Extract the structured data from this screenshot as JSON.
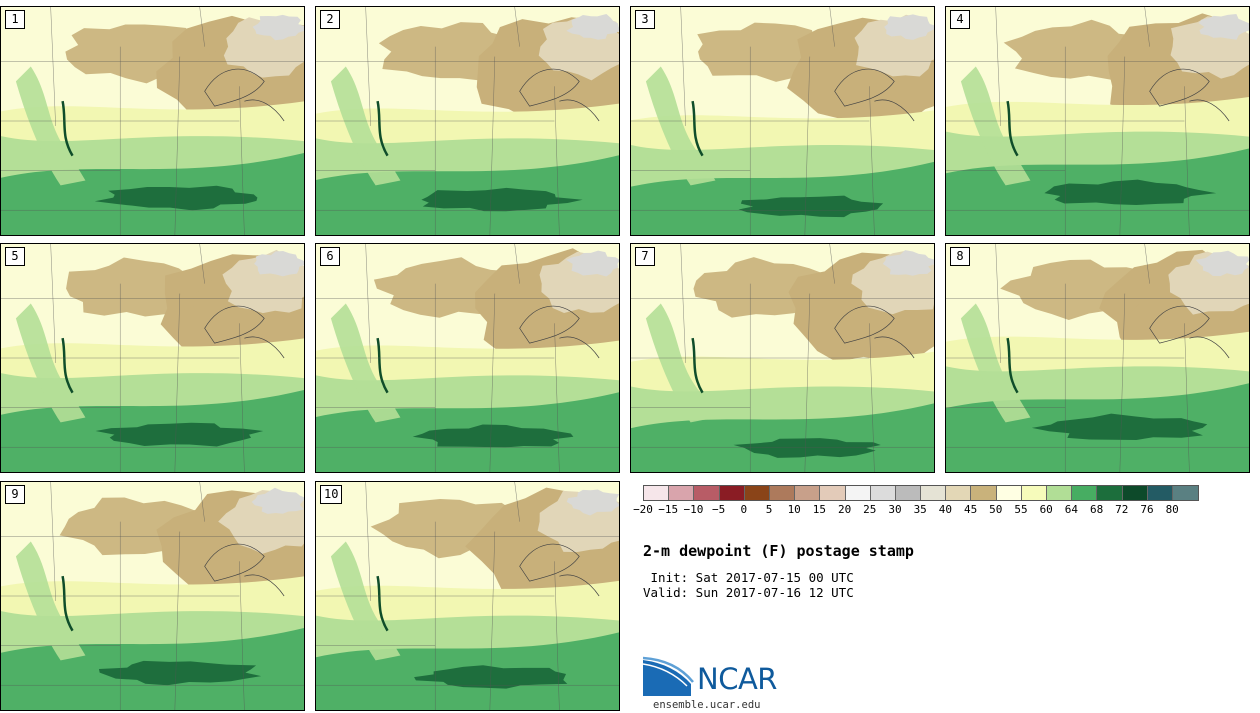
{
  "title": "2-m dewpoint (F) postage stamp",
  "init": " Init: Sat 2017-07-15 00 UTC",
  "valid": "Valid: Sun 2017-07-16 12 UTC",
  "site": "ensemble.ucar.edu",
  "logo_text": "NCAR",
  "panels": [
    {
      "label": "1",
      "moist": 0.55
    },
    {
      "label": "2",
      "moist": 0.5
    },
    {
      "label": "3",
      "moist": 0.35
    },
    {
      "label": "4",
      "moist": 0.65
    },
    {
      "label": "5",
      "moist": 0.55
    },
    {
      "label": "6",
      "moist": 0.5
    },
    {
      "label": "7",
      "moist": 0.25
    },
    {
      "label": "8",
      "moist": 0.7
    },
    {
      "label": "9",
      "moist": 0.55
    },
    {
      "label": "10",
      "moist": 0.45
    }
  ],
  "legend": {
    "colors": [
      "#f6e6ea",
      "#d9a4ac",
      "#b85c66",
      "#8a1c24",
      "#8a4418",
      "#ad7a5c",
      "#c8a08a",
      "#e3cbb9",
      "#f4f4f4",
      "#dcdcdc",
      "#bbbbbb",
      "#e5e3d5",
      "#e3d7b6",
      "#c9b27b",
      "#ffffe3",
      "#f6fbbb",
      "#b1de96",
      "#47ad62",
      "#1c6e3c",
      "#0d4a2a",
      "#235b64",
      "#5a8082"
    ],
    "ticks": [
      "−20",
      "−15",
      "−10",
      "−5",
      "0",
      "5",
      "10",
      "15",
      "20",
      "25",
      "30",
      "35",
      "40",
      "45",
      "50",
      "55",
      "60",
      "64",
      "68",
      "72",
      "76",
      "80"
    ]
  },
  "map_colors": {
    "dry_dark": "#c8b07a",
    "dry_light": "#e1d6b8",
    "gray": "#d9d9d6",
    "pale": "#fbfcd6",
    "yellow": "#f2f7b2",
    "light_green": "#b4df97",
    "green": "#4fb066",
    "dark_green": "#1e6e3d",
    "darkest": "#0f4d2a"
  }
}
